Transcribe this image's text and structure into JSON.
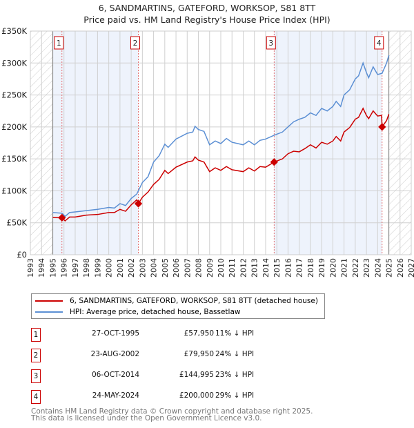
{
  "chart_data": {
    "type": "line",
    "title": "6, SANDMARTINS, GATEFORD, WORKSOP, S81 8TT",
    "subtitle": "Price paid vs. HM Land Registry's House Price Index (HPI)",
    "xlim": [
      1993,
      2027
    ],
    "ylim": [
      0,
      350000
    ],
    "x_ticks": [
      "1993",
      "1994",
      "1995",
      "1996",
      "1997",
      "1998",
      "1999",
      "2000",
      "2001",
      "2002",
      "2003",
      "2004",
      "2005",
      "2006",
      "2007",
      "2008",
      "2009",
      "2010",
      "2011",
      "2012",
      "2013",
      "2014",
      "2015",
      "2016",
      "2017",
      "2018",
      "2019",
      "2020",
      "2021",
      "2022",
      "2023",
      "2024",
      "2025",
      "2026",
      "2027"
    ],
    "y_ticks": [
      {
        "v": 0,
        "label": "£0"
      },
      {
        "v": 50000,
        "label": "£50K"
      },
      {
        "v": 100000,
        "label": "£100K"
      },
      {
        "v": 150000,
        "label": "£150K"
      },
      {
        "v": 200000,
        "label": "£200K"
      },
      {
        "v": 250000,
        "label": "£250K"
      },
      {
        "v": 300000,
        "label": "£300K"
      },
      {
        "v": 350000,
        "label": "£350K"
      }
    ],
    "grid": true,
    "hatched_ranges": [
      [
        1993,
        1995
      ],
      [
        2025,
        2027
      ]
    ],
    "shaded_ranges": [
      [
        1995,
        2002.64
      ],
      [
        2014.76,
        2024.4
      ]
    ],
    "series": [
      {
        "name": "6, SANDMARTINS, GATEFORD, WORKSOP, S81 8TT (detached house)",
        "color": "#cc0000",
        "points": [
          [
            1995,
            58000
          ],
          [
            1995.82,
            57950
          ],
          [
            1996.1,
            53000
          ],
          [
            1996.5,
            59000
          ],
          [
            1997,
            59000
          ],
          [
            1998,
            62000
          ],
          [
            1999,
            63000
          ],
          [
            2000,
            66000
          ],
          [
            2000.5,
            66000
          ],
          [
            2001,
            71000
          ],
          [
            2001.5,
            68000
          ],
          [
            2002,
            78000
          ],
          [
            2002.5,
            86000
          ],
          [
            2002.64,
            79950
          ],
          [
            2003,
            90000
          ],
          [
            2003.5,
            98000
          ],
          [
            2004,
            110000
          ],
          [
            2004.5,
            118000
          ],
          [
            2005,
            132000
          ],
          [
            2005.3,
            127000
          ],
          [
            2006,
            137000
          ],
          [
            2007,
            145000
          ],
          [
            2007.5,
            147000
          ],
          [
            2007.7,
            153000
          ],
          [
            2008,
            148000
          ],
          [
            2008.5,
            145000
          ],
          [
            2009,
            130000
          ],
          [
            2009.5,
            136000
          ],
          [
            2010,
            132000
          ],
          [
            2010.5,
            138000
          ],
          [
            2011,
            133000
          ],
          [
            2012,
            130000
          ],
          [
            2012.5,
            136000
          ],
          [
            2013,
            131000
          ],
          [
            2013.5,
            138000
          ],
          [
            2014,
            137000
          ],
          [
            2014.76,
            144995
          ],
          [
            2015.5,
            150000
          ],
          [
            2016,
            158000
          ],
          [
            2016.5,
            162000
          ],
          [
            2017,
            161000
          ],
          [
            2017.5,
            166000
          ],
          [
            2018,
            172000
          ],
          [
            2018.5,
            167000
          ],
          [
            2019,
            176000
          ],
          [
            2019.5,
            173000
          ],
          [
            2020,
            178000
          ],
          [
            2020.3,
            185000
          ],
          [
            2020.7,
            178000
          ],
          [
            2021,
            192000
          ],
          [
            2021.5,
            199000
          ],
          [
            2022,
            212000
          ],
          [
            2022.3,
            215000
          ],
          [
            2022.7,
            229000
          ],
          [
            2023,
            218000
          ],
          [
            2023.2,
            213000
          ],
          [
            2023.6,
            225000
          ],
          [
            2024,
            217000
          ],
          [
            2024.35,
            218000
          ],
          [
            2024.4,
            200000
          ],
          [
            2024.8,
            210000
          ],
          [
            2025,
            220000
          ]
        ]
      },
      {
        "name": "HPI: Average price, detached house, Bassetlaw",
        "color": "#5b8fd4",
        "points": [
          [
            1995,
            66000
          ],
          [
            1995.82,
            65000
          ],
          [
            1996.1,
            60000
          ],
          [
            1996.5,
            66000
          ],
          [
            1997,
            67000
          ],
          [
            1998,
            69000
          ],
          [
            1999,
            71000
          ],
          [
            2000,
            74000
          ],
          [
            2000.5,
            73000
          ],
          [
            2001,
            80000
          ],
          [
            2001.5,
            77000
          ],
          [
            2002,
            88000
          ],
          [
            2002.5,
            95000
          ],
          [
            2003,
            113000
          ],
          [
            2003.5,
            122000
          ],
          [
            2004,
            145000
          ],
          [
            2004.5,
            155000
          ],
          [
            2005,
            173000
          ],
          [
            2005.3,
            168000
          ],
          [
            2006,
            181000
          ],
          [
            2007,
            190000
          ],
          [
            2007.5,
            192000
          ],
          [
            2007.7,
            201000
          ],
          [
            2008,
            196000
          ],
          [
            2008.5,
            193000
          ],
          [
            2009,
            172000
          ],
          [
            2009.5,
            178000
          ],
          [
            2010,
            174000
          ],
          [
            2010.5,
            182000
          ],
          [
            2011,
            176000
          ],
          [
            2012,
            172000
          ],
          [
            2012.5,
            178000
          ],
          [
            2013,
            172000
          ],
          [
            2013.5,
            179000
          ],
          [
            2014,
            181000
          ],
          [
            2014.76,
            187000
          ],
          [
            2015.5,
            192000
          ],
          [
            2016,
            200000
          ],
          [
            2016.5,
            208000
          ],
          [
            2017,
            212000
          ],
          [
            2017.5,
            215000
          ],
          [
            2018,
            222000
          ],
          [
            2018.5,
            218000
          ],
          [
            2019,
            229000
          ],
          [
            2019.5,
            225000
          ],
          [
            2020,
            232000
          ],
          [
            2020.3,
            240000
          ],
          [
            2020.7,
            232000
          ],
          [
            2021,
            250000
          ],
          [
            2021.5,
            258000
          ],
          [
            2022,
            275000
          ],
          [
            2022.3,
            280000
          ],
          [
            2022.7,
            300000
          ],
          [
            2023,
            285000
          ],
          [
            2023.2,
            277000
          ],
          [
            2023.6,
            294000
          ],
          [
            2024,
            282000
          ],
          [
            2024.4,
            284000
          ],
          [
            2024.8,
            300000
          ],
          [
            2025,
            312000
          ]
        ]
      }
    ],
    "sales": [
      {
        "id": "1",
        "x": 1995.82,
        "y": 57950
      },
      {
        "id": "2",
        "x": 2002.64,
        "y": 79950
      },
      {
        "id": "3",
        "x": 2014.76,
        "y": 144995
      },
      {
        "id": "4",
        "x": 2024.4,
        "y": 200000
      }
    ],
    "legend_placement": "below"
  },
  "legend": {
    "property": "6, SANDMARTINS, GATEFORD, WORKSOP, S81 8TT (detached house)",
    "hpi": "HPI: Average price, detached house, Bassetlaw"
  },
  "transactions": [
    {
      "num": "1",
      "date": "27-OCT-1995",
      "price": "£57,950",
      "hpi": "11% ↓ HPI"
    },
    {
      "num": "2",
      "date": "23-AUG-2002",
      "price": "£79,950",
      "hpi": "24% ↓ HPI"
    },
    {
      "num": "3",
      "date": "06-OCT-2014",
      "price": "£144,995",
      "hpi": "23% ↓ HPI"
    },
    {
      "num": "4",
      "date": "24-MAY-2024",
      "price": "£200,000",
      "hpi": "29% ↓ HPI"
    }
  ],
  "footer": {
    "line1": "Contains HM Land Registry data © Crown copyright and database right 2025.",
    "line2": "This data is licensed under the Open Government Licence v3.0."
  }
}
